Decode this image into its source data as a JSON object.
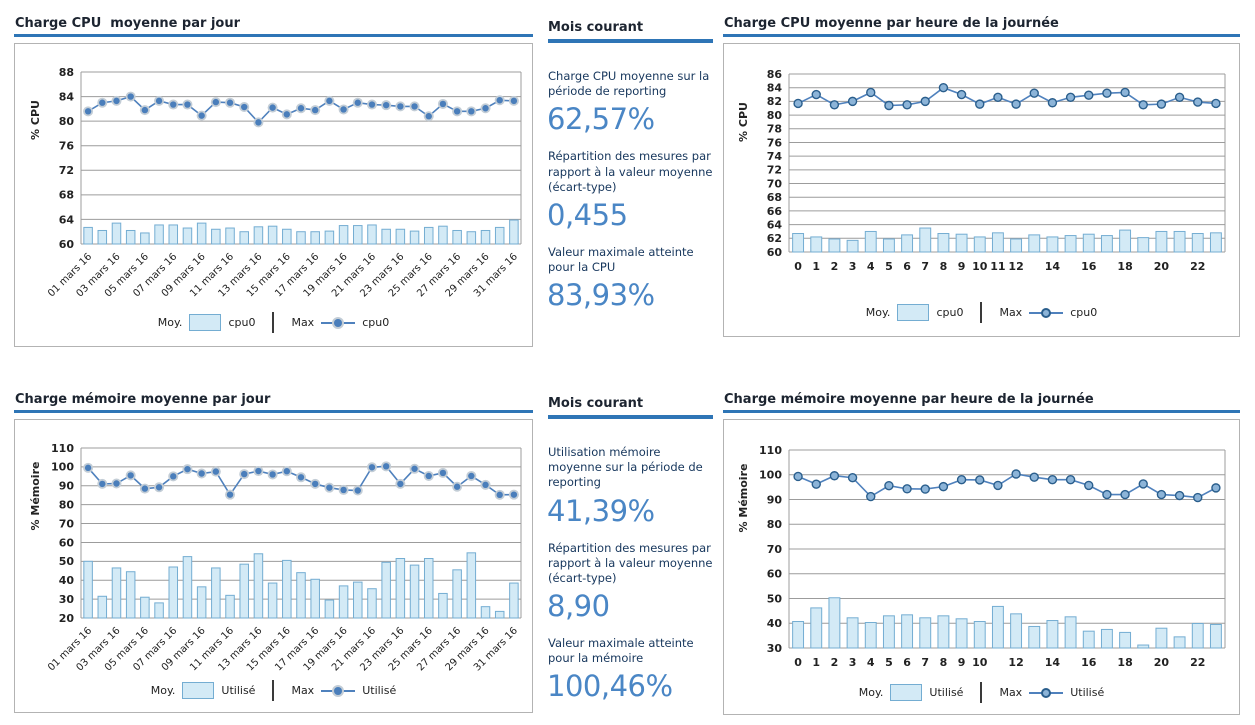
{
  "colors": {
    "accent_underline": "#2e75b6",
    "title_text": "#1c2430",
    "stat_value_blue": "#4a86c5",
    "stat_label_navy": "#16365c",
    "bar_fill": "#d3eaf6",
    "bar_stroke": "#74add2",
    "line": "#4f81bd",
    "marker_fill": "#4a7ebb",
    "marker_halo": "#c3cdd6",
    "marker_ring_fill": "#8cb4d8",
    "marker_ring_stroke": "#2a5e8c",
    "grid": "#9c9c9c",
    "box_border": "#b3b3b3"
  },
  "panels": [
    {
      "header": "Mois courant",
      "items": [
        {
          "label": "Charge CPU moyenne sur la période de reporting",
          "value": "62,57%"
        },
        {
          "label": "Répartition des mesures par rapport à la valeur moyenne (écart-type)",
          "value": "0,455"
        },
        {
          "label": "Valeur maximale atteinte pour la CPU",
          "value": "83,93%"
        }
      ]
    },
    {
      "header": "Mois courant",
      "items": [
        {
          "label": "Utilisation mémoire moyenne sur la période de reporting",
          "value": "41,39%"
        },
        {
          "label": "Répartition des mesures par rapport à la valeur moyenne (écart-type)",
          "value": "8,90"
        },
        {
          "label": "Valeur maximale atteinte pour la mémoire",
          "value": "100,46%"
        }
      ]
    }
  ],
  "chart_data": [
    {
      "type": "bar+line",
      "title": "Charge CPU  moyenne par jour",
      "ylabel": "% CPU",
      "ylim": [
        60,
        88
      ],
      "ytick_step": 4,
      "grid": true,
      "legend": {
        "avg_prefix": "Moy.",
        "avg_label": "cpu0",
        "max_prefix": "Max",
        "max_label": "cpu0"
      },
      "xlabels": [
        "01 mars 16",
        "03 mars 16",
        "05 mars 16",
        "07 mars 16",
        "09 mars 16",
        "11 mars 16",
        "13 mars 16",
        "15 mars 16",
        "17 mars 16",
        "19 mars 16",
        "21 mars 16",
        "23 mars 16",
        "25 mars 16",
        "27 mars 16",
        "29 mars 16",
        "31 mars 16"
      ],
      "xlabel_indices": [
        0,
        2,
        4,
        6,
        8,
        10,
        12,
        14,
        16,
        18,
        20,
        22,
        24,
        26,
        28,
        30
      ],
      "series_avg": [
        62.7,
        62.2,
        63.4,
        62.2,
        61.8,
        63.1,
        63.1,
        62.6,
        63.4,
        62.4,
        62.6,
        62.0,
        62.8,
        62.9,
        62.4,
        62.0,
        62.0,
        62.1,
        63.0,
        63.0,
        63.1,
        62.4,
        62.4,
        62.1,
        62.7,
        62.9,
        62.2,
        62.0,
        62.2,
        62.7,
        63.9
      ],
      "series_max": [
        81.6,
        83.0,
        83.3,
        84.0,
        81.8,
        83.3,
        82.7,
        82.7,
        80.9,
        83.1,
        83.0,
        82.3,
        79.8,
        82.2,
        81.1,
        82.1,
        81.8,
        83.3,
        81.9,
        83.0,
        82.7,
        82.6,
        82.4,
        82.4,
        80.8,
        82.8,
        81.6,
        81.6,
        82.1,
        83.4,
        83.3
      ]
    },
    {
      "type": "bar+line",
      "title": "Charge CPU moyenne par heure de la journée",
      "ylabel": "% CPU",
      "ylim": [
        60,
        86
      ],
      "ytick_step": 2,
      "grid": true,
      "legend": {
        "avg_prefix": "Moy.",
        "avg_label": "cpu0",
        "max_prefix": "Max",
        "max_label": "cpu0"
      },
      "xlabels": [
        "0",
        "1",
        "2",
        "3",
        "4",
        "5",
        "6",
        "7",
        "8",
        "9",
        "10",
        "11",
        "12",
        "14",
        "16",
        "18",
        "20",
        "22"
      ],
      "xlabel_indices": [
        0,
        1,
        2,
        3,
        4,
        5,
        6,
        7,
        8,
        9,
        10,
        11,
        12,
        14,
        16,
        18,
        20,
        22
      ],
      "series_avg": [
        62.7,
        62.2,
        61.9,
        61.7,
        63.0,
        61.9,
        62.5,
        63.5,
        62.7,
        62.6,
        62.2,
        62.8,
        61.9,
        62.5,
        62.2,
        62.4,
        62.6,
        62.4,
        63.2,
        62.1,
        63.0,
        63.0,
        62.7,
        62.8
      ],
      "series_max": [
        81.7,
        83.0,
        81.5,
        82.0,
        83.3,
        81.4,
        81.5,
        82.0,
        84.0,
        83.0,
        81.6,
        82.6,
        81.6,
        83.2,
        81.8,
        82.6,
        82.9,
        83.2,
        83.3,
        81.5,
        81.6,
        82.6,
        81.9,
        81.7
      ]
    },
    {
      "type": "bar+line",
      "title": "Charge mémoire moyenne par jour",
      "ylabel": "% Mémoire",
      "ylim": [
        20,
        110
      ],
      "ytick_step": 10,
      "grid": true,
      "legend": {
        "avg_prefix": "Moy.",
        "avg_label": "Utilisé",
        "max_prefix": "Max",
        "max_label": "Utilisé"
      },
      "xlabels": [
        "01 mars 16",
        "03 mars 16",
        "05 mars 16",
        "07 mars 16",
        "09 mars 16",
        "11 mars 16",
        "13 mars 16",
        "15 mars 16",
        "17 mars 16",
        "19 mars 16",
        "21 mars 16",
        "23 mars 16",
        "25 mars 16",
        "27 mars 16",
        "29 mars 16",
        "31 mars 16"
      ],
      "xlabel_indices": [
        0,
        2,
        4,
        6,
        8,
        10,
        12,
        14,
        16,
        18,
        20,
        22,
        24,
        26,
        28,
        30
      ],
      "series_avg": [
        50.0,
        31.5,
        46.5,
        44.5,
        31.0,
        28.0,
        47.0,
        52.5,
        36.5,
        46.5,
        32.0,
        48.5,
        54.0,
        38.5,
        50.5,
        44.0,
        40.5,
        29.5,
        37.0,
        39.0,
        35.5,
        49.5,
        51.5,
        48.0,
        51.5,
        33.0,
        45.5,
        54.5,
        26.0,
        23.5,
        38.5
      ],
      "series_max": [
        99.5,
        91.0,
        91.2,
        95.5,
        88.5,
        89.2,
        95.0,
        98.8,
        96.5,
        97.5,
        85.3,
        96.2,
        97.8,
        96.0,
        97.7,
        94.5,
        91.0,
        89.0,
        87.8,
        87.5,
        99.8,
        100.3,
        91.0,
        99.0,
        95.2,
        96.8,
        89.5,
        95.2,
        90.5,
        85.2,
        85.3
      ]
    },
    {
      "type": "bar+line",
      "title": "Charge mémoire moyenne par heure de la journée",
      "ylabel": "% Mémoire",
      "ylim": [
        30,
        110
      ],
      "ytick_step": 10,
      "grid": true,
      "legend": {
        "avg_prefix": "Moy.",
        "avg_label": "Utilisé",
        "max_prefix": "Max",
        "max_label": "Utilisé"
      },
      "xlabels": [
        "0",
        "1",
        "2",
        "3",
        "4",
        "5",
        "6",
        "7",
        "8",
        "9",
        "10",
        "12",
        "14",
        "16",
        "18",
        "20",
        "22"
      ],
      "xlabel_indices": [
        0,
        1,
        2,
        3,
        4,
        5,
        6,
        7,
        8,
        9,
        10,
        12,
        14,
        16,
        18,
        20,
        22
      ],
      "series_avg": [
        40.7,
        46.2,
        50.3,
        42.2,
        40.3,
        43.0,
        43.4,
        42.2,
        43.0,
        41.8,
        40.7,
        46.8,
        43.8,
        38.7,
        41.1,
        42.6,
        36.8,
        37.5,
        36.3,
        31.2,
        38.0,
        34.5,
        39.9,
        39.5
      ],
      "series_max": [
        99.3,
        96.2,
        99.6,
        98.8,
        91.2,
        95.6,
        94.3,
        94.2,
        95.2,
        98.0,
        97.9,
        95.7,
        100.3,
        99.0,
        98.0,
        98.0,
        95.7,
        92.0,
        92.0,
        96.3,
        92.0,
        91.6,
        90.8,
        94.7
      ]
    }
  ]
}
